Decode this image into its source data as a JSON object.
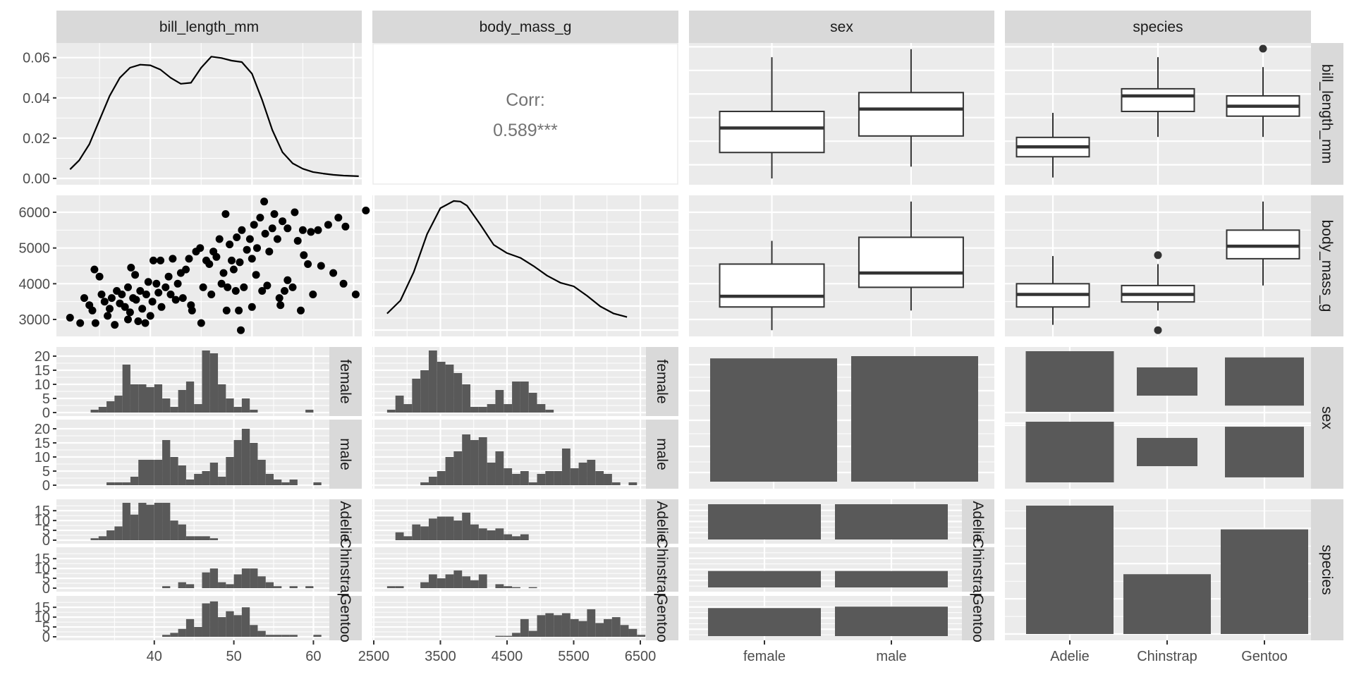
{
  "chart_data": {
    "type": "pairs",
    "title": "",
    "variables": [
      "bill_length_mm",
      "body_mass_g",
      "sex",
      "species"
    ],
    "column_strips": [
      "bill_length_mm",
      "body_mass_g",
      "sex",
      "species"
    ],
    "row_strips": [
      "bill_length_mm",
      "body_mass_g",
      "sex",
      "species"
    ],
    "sex_levels": [
      "female",
      "male"
    ],
    "species_levels": [
      "Adelie",
      "Chinstrap",
      "Gentoo"
    ],
    "axes": {
      "bill_length_mm": {
        "range": [
          30.76,
          60.8
        ],
        "ticks": [
          40,
          50,
          60
        ],
        "minor": [
          35,
          45,
          55
        ]
      },
      "body_mass_g": {
        "range": [
          2500,
          6500
        ],
        "y_range": [
          2530,
          6460
        ],
        "ticks": [
          2500,
          3500,
          4500,
          5500,
          6500
        ],
        "y_ticks": [
          3000,
          4000,
          5000,
          6000
        ]
      },
      "density_y": {
        "range": [
          0,
          0.0655
        ],
        "ticks": [
          "0.00",
          "0.02",
          "0.04",
          "0.06"
        ],
        "values": [
          0,
          0.02,
          0.04,
          0.06
        ]
      },
      "hist_count_y": {
        "ticks": [
          0,
          5,
          10,
          15,
          20
        ]
      }
    },
    "correlation": {
      "label": "Corr:",
      "value": "0.589***"
    },
    "density_bill_length": {
      "x": [
        32.1,
        33,
        34,
        35,
        36,
        37,
        38,
        39,
        40,
        41,
        42,
        43,
        44,
        45,
        46,
        47,
        48,
        49,
        50,
        51,
        52,
        53,
        54,
        55,
        56,
        57,
        58,
        59,
        60.5
      ],
      "y": [
        0.0045,
        0.009,
        0.017,
        0.029,
        0.041,
        0.05,
        0.055,
        0.0565,
        0.0562,
        0.054,
        0.05,
        0.047,
        0.0475,
        0.055,
        0.0605,
        0.0598,
        0.0585,
        0.0578,
        0.052,
        0.039,
        0.024,
        0.013,
        0.0075,
        0.0048,
        0.0032,
        0.0024,
        0.0018,
        0.0014,
        0.0011
      ]
    },
    "density_body_mass": {
      "x": [
        2700,
        2900,
        3100,
        3300,
        3500,
        3700,
        3800,
        3900,
        4100,
        4300,
        4500,
        4700,
        4900,
        5100,
        5300,
        5500,
        5700,
        5900,
        6100,
        6300
      ],
      "y_rel": [
        0.05,
        0.16,
        0.4,
        0.72,
        0.94,
        1.0,
        0.995,
        0.96,
        0.8,
        0.63,
        0.56,
        0.52,
        0.45,
        0.37,
        0.31,
        0.28,
        0.2,
        0.11,
        0.05,
        0.02
      ]
    },
    "scatter_bill_vs_mass": [
      [
        32.1,
        3050
      ],
      [
        33.1,
        2900
      ],
      [
        33.5,
        3600
      ],
      [
        34.0,
        3400
      ],
      [
        34.3,
        3250
      ],
      [
        34.5,
        4400
      ],
      [
        35.0,
        4200
      ],
      [
        34.6,
        2900
      ],
      [
        35.2,
        3700
      ],
      [
        35.5,
        3500
      ],
      [
        35.8,
        3100
      ],
      [
        36.0,
        3300
      ],
      [
        36.2,
        3600
      ],
      [
        36.5,
        2850
      ],
      [
        36.7,
        3800
      ],
      [
        37.0,
        3450
      ],
      [
        37.2,
        3700
      ],
      [
        37.5,
        3350
      ],
      [
        37.8,
        3900
      ],
      [
        37.8,
        3000
      ],
      [
        38.0,
        3200
      ],
      [
        38.1,
        4450
      ],
      [
        38.3,
        3600
      ],
      [
        38.5,
        4250
      ],
      [
        38.6,
        3550
      ],
      [
        38.8,
        2950
      ],
      [
        39.0,
        3800
      ],
      [
        39.2,
        3300
      ],
      [
        39.5,
        2900
      ],
      [
        39.6,
        3700
      ],
      [
        39.8,
        4050
      ],
      [
        40.0,
        3100
      ],
      [
        40.2,
        3500
      ],
      [
        40.3,
        4650
      ],
      [
        40.6,
        4000
      ],
      [
        40.8,
        3750
      ],
      [
        41.0,
        4650
      ],
      [
        41.1,
        3350
      ],
      [
        41.5,
        3900
      ],
      [
        41.8,
        4200
      ],
      [
        42.0,
        3700
      ],
      [
        42.2,
        4700
      ],
      [
        42.5,
        3550
      ],
      [
        42.7,
        4000
      ],
      [
        43.0,
        4300
      ],
      [
        43.2,
        3600
      ],
      [
        43.5,
        4400
      ],
      [
        43.8,
        4700
      ],
      [
        44.0,
        3400
      ],
      [
        44.1,
        3250
      ],
      [
        44.5,
        4900
      ],
      [
        44.9,
        5000
      ],
      [
        45.0,
        2900
      ],
      [
        45.2,
        3900
      ],
      [
        45.5,
        4650
      ],
      [
        45.8,
        4550
      ],
      [
        46.0,
        3700
      ],
      [
        46.2,
        4900
      ],
      [
        46.5,
        4750
      ],
      [
        46.8,
        5250
      ],
      [
        47.0,
        4000
      ],
      [
        47.2,
        4300
      ],
      [
        47.4,
        5950
      ],
      [
        47.5,
        3250
      ],
      [
        47.6,
        3900
      ],
      [
        47.8,
        5100
      ],
      [
        48.0,
        4650
      ],
      [
        48.2,
        4400
      ],
      [
        48.4,
        3800
      ],
      [
        48.5,
        5300
      ],
      [
        48.7,
        3250
      ],
      [
        48.8,
        4600
      ],
      [
        48.9,
        2700
      ],
      [
        49.0,
        5500
      ],
      [
        49.2,
        3900
      ],
      [
        49.5,
        4950
      ],
      [
        49.8,
        5250
      ],
      [
        50.0,
        4700
      ],
      [
        50.0,
        3350
      ],
      [
        50.2,
        5650
      ],
      [
        50.4,
        4250
      ],
      [
        50.5,
        5000
      ],
      [
        50.8,
        5850
      ],
      [
        51.0,
        3800
      ],
      [
        51.2,
        6300
      ],
      [
        51.3,
        5400
      ],
      [
        51.5,
        3950
      ],
      [
        51.7,
        4900
      ],
      [
        52.0,
        5550
      ],
      [
        52.2,
        5950
      ],
      [
        52.5,
        5250
      ],
      [
        52.7,
        3600
      ],
      [
        52.8,
        3400
      ],
      [
        53.0,
        5750
      ],
      [
        53.2,
        3800
      ],
      [
        53.5,
        5550
      ],
      [
        53.5,
        4100
      ],
      [
        54.0,
        3900
      ],
      [
        54.2,
        6000
      ],
      [
        54.5,
        5200
      ],
      [
        54.8,
        3250
      ],
      [
        55.0,
        5500
      ],
      [
        55.1,
        4800
      ],
      [
        55.5,
        4550
      ],
      [
        55.8,
        5450
      ],
      [
        56.0,
        3700
      ],
      [
        56.5,
        5500
      ],
      [
        56.8,
        4500
      ],
      [
        57.5,
        5650
      ],
      [
        58.0,
        4300
      ],
      [
        58.5,
        5850
      ],
      [
        59.0,
        4000
      ],
      [
        59.2,
        5600
      ],
      [
        60.2,
        3700
      ],
      [
        61.2,
        6050
      ]
    ],
    "boxplots_bill_by_sex": [
      {
        "group": "female",
        "min": 32.1,
        "q1": 37.6,
        "median": 42.8,
        "q3": 46.3,
        "max": 57.8,
        "outliers": []
      },
      {
        "group": "male",
        "min": 34.6,
        "q1": 41.1,
        "median": 46.8,
        "q3": 50.3,
        "max": 59.5,
        "outliers": []
      }
    ],
    "boxplots_bill_by_species": [
      {
        "group": "Adelie",
        "min": 32.3,
        "q1": 36.7,
        "median": 38.8,
        "q3": 40.8,
        "max": 46.0,
        "outliers": []
      },
      {
        "group": "Chinstrap",
        "min": 40.9,
        "q1": 46.3,
        "median": 49.6,
        "q3": 51.1,
        "max": 57.8,
        "outliers": []
      },
      {
        "group": "Gentoo",
        "min": 40.9,
        "q1": 45.3,
        "median": 47.4,
        "q3": 49.6,
        "max": 55.7,
        "outliers": [
          59.6
        ]
      }
    ],
    "boxplots_mass_by_sex": [
      {
        "group": "female",
        "min": 2700,
        "q1": 3350,
        "median": 3650,
        "q3": 4550,
        "max": 5200,
        "outliers": []
      },
      {
        "group": "male",
        "min": 3250,
        "q1": 3900,
        "median": 4300,
        "q3": 5300,
        "max": 6300,
        "outliers": []
      }
    ],
    "boxplots_mass_by_species": [
      {
        "group": "Adelie",
        "min": 2850,
        "q1": 3350,
        "median": 3700,
        "q3": 4000,
        "max": 4775,
        "outliers": []
      },
      {
        "group": "Chinstrap",
        "min": 3250,
        "q1": 3490,
        "median": 3700,
        "q3": 3950,
        "max": 4550,
        "outliers": [
          2700,
          4800
        ]
      },
      {
        "group": "Gentoo",
        "min": 3950,
        "q1": 4700,
        "median": 5050,
        "q3": 5500,
        "max": 6300,
        "outliers": []
      }
    ],
    "hist_bill_by_sex": {
      "bin_start": 32.0,
      "bin_width": 1.0,
      "female": [
        1,
        2,
        4,
        6,
        17,
        10,
        10,
        9,
        10,
        5,
        2,
        8,
        11,
        3,
        22,
        21,
        10,
        5,
        2,
        5,
        1,
        0,
        0,
        0,
        0,
        0,
        0,
        1,
        0
      ],
      "male": [
        0,
        0,
        1,
        1,
        1,
        3,
        9,
        9,
        9,
        16,
        10,
        7,
        2,
        4,
        5,
        8,
        3,
        10,
        16,
        20,
        15,
        9,
        4,
        2,
        1,
        2,
        0,
        0,
        1
      ]
    },
    "hist_bill_by_species": {
      "bin_start": 32.0,
      "bin_width": 1.0,
      "Adelie": [
        1,
        2,
        5,
        7,
        19,
        13,
        19,
        18,
        19,
        19,
        10,
        8,
        2,
        2,
        2,
        1,
        0,
        0,
        0,
        0,
        0,
        0,
        0,
        0,
        0,
        0,
        0,
        0,
        0
      ],
      "Chinstrap": [
        0,
        0,
        0,
        0,
        0,
        0,
        0,
        0,
        0,
        1,
        0,
        3,
        2,
        0,
        8,
        10,
        3,
        2,
        7,
        10,
        10,
        6,
        3,
        1,
        0,
        1,
        0,
        1,
        0
      ],
      "Gentoo": [
        0,
        0,
        0,
        0,
        0,
        0,
        0,
        0,
        0,
        1,
        2,
        4,
        9,
        5,
        17,
        18,
        10,
        13,
        11,
        15,
        6,
        3,
        1,
        1,
        1,
        1,
        0,
        0,
        1
      ]
    },
    "hist_mass_by_sex": {
      "bin_start": 2700,
      "bin_width": 125,
      "female": [
        1,
        6,
        3,
        12,
        15,
        22,
        18,
        17,
        14,
        10,
        2,
        2,
        3,
        8,
        3,
        11,
        11,
        7,
        3,
        1
      ],
      "male": [
        0,
        0,
        0,
        0,
        1,
        3,
        5,
        10,
        12,
        18,
        16,
        17,
        8,
        12,
        6,
        4,
        5,
        1,
        4,
        5,
        5,
        13,
        6,
        8,
        9,
        5,
        4,
        1,
        0,
        1
      ]
    },
    "hist_mass_by_species": {
      "bin_start": 2700,
      "bin_width": 125,
      "Adelie": [
        0,
        4,
        2,
        8,
        7,
        11,
        12,
        12,
        10,
        14,
        8,
        6,
        5,
        6,
        3,
        2,
        3,
        0
      ],
      "Chinstrap": [
        1,
        1,
        0,
        0,
        3,
        7,
        5,
        7,
        9,
        6,
        4,
        7,
        0,
        2,
        1,
        0.5,
        0,
        0.5
      ],
      "Gentoo": [
        0,
        0,
        0,
        0,
        0,
        0,
        0,
        0,
        0,
        0,
        0,
        0,
        0,
        0.5,
        0.5,
        2,
        9,
        3,
        11,
        12,
        11,
        12,
        9,
        8,
        14,
        7,
        9,
        10,
        6,
        4,
        1,
        0,
        1
      ]
    },
    "counts_sex_by_sex": {
      "female": 165,
      "male": 168
    },
    "counts_sex_by_species": {
      "female": {
        "Adelie": 73,
        "Chinstrap": 34,
        "Gentoo": 58
      },
      "male": {
        "Adelie": 73,
        "Chinstrap": 34,
        "Gentoo": 61
      }
    },
    "counts_species": {
      "Adelie": 146,
      "Chinstrap": 68,
      "Gentoo": 119
    },
    "x_tick_labels": {
      "col1": [
        "40",
        "50",
        "60"
      ],
      "col2": [
        "2500",
        "3500",
        "4500",
        "5500",
        "6500"
      ],
      "col3": [
        "female",
        "male"
      ],
      "col4": [
        "Adelie",
        "Chinstrap",
        "Gentoo"
      ]
    },
    "y_tick_labels": {
      "row1": [
        "0.00",
        "0.02",
        "0.04",
        "0.06"
      ],
      "row2": [
        "3000",
        "4000",
        "5000",
        "6000"
      ],
      "row3_sub": [
        "0",
        "5",
        "10",
        "15",
        "20"
      ],
      "row4_sub": [
        "0",
        "5",
        "10",
        "15"
      ]
    },
    "colors": {
      "panel_bg": "#ebebeb",
      "grid_major": "#ffffff",
      "strip_bg": "#d9d9d9",
      "bar_fill": "#595959",
      "point": "#000000",
      "box_line": "#333333",
      "axis_text": "#4d4d4d",
      "strip_text": "#1a1a1a",
      "corr_text": "#737373"
    }
  }
}
